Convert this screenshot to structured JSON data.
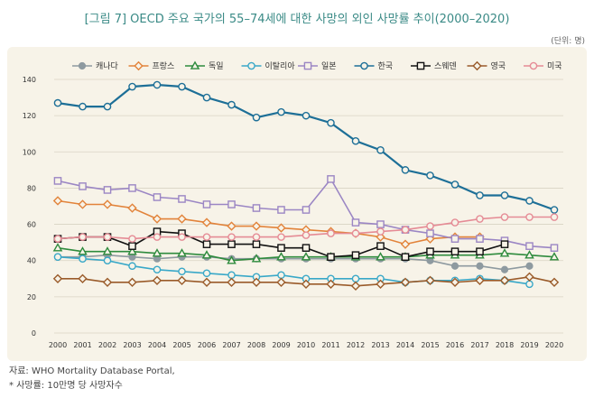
{
  "title": "[그림 7] OECD 주요 국가의 55–74세에 대한 사망의 외인 사망률 추이(2000–2020)",
  "unit_note": "(단위: 명)",
  "notes": [
    "자료: WHO Mortality Database Portal,",
    "* 사망률: 10만명 당 사망자수"
  ],
  "chart_data": {
    "type": "line",
    "title": "[그림 7] OECD 주요 국가의 55–74세에 대한 사망의 외인 사망률 추이(2000–2020)",
    "xlabel": "",
    "ylabel": "",
    "ylim": [
      0,
      140
    ],
    "yticks": [
      0,
      20,
      40,
      60,
      80,
      100,
      120,
      140
    ],
    "x": [
      2000,
      2001,
      2002,
      2003,
      2004,
      2005,
      2006,
      2007,
      2008,
      2009,
      2010,
      2011,
      2012,
      2013,
      2014,
      2015,
      2016,
      2017,
      2018,
      2019,
      2020
    ],
    "grid": true,
    "legend_position": "top",
    "series": [
      {
        "name": "캐나다",
        "color": "#8e9aa0",
        "marker": "circle",
        "values": [
          42,
          42,
          43,
          42,
          41,
          42,
          42,
          41,
          41,
          41,
          41,
          41,
          41,
          41,
          41,
          40,
          37,
          37,
          35,
          37,
          null
        ]
      },
      {
        "name": "프랑스",
        "color": "#e2833a",
        "marker": "diamond",
        "values": [
          73,
          71,
          71,
          69,
          63,
          63,
          61,
          59,
          59,
          58,
          57,
          56,
          55,
          53,
          49,
          52,
          53,
          53,
          null,
          null,
          null
        ]
      },
      {
        "name": "독일",
        "color": "#2e8b3d",
        "marker": "triangle",
        "values": [
          47,
          45,
          45,
          45,
          44,
          44,
          43,
          40,
          41,
          42,
          42,
          42,
          42,
          42,
          42,
          43,
          43,
          43,
          44,
          43,
          42
        ]
      },
      {
        "name": "이탈리아",
        "color": "#39a8c8",
        "marker": "circle-open",
        "values": [
          42,
          41,
          40,
          37,
          35,
          34,
          33,
          32,
          31,
          32,
          30,
          30,
          30,
          30,
          28,
          29,
          29,
          30,
          29,
          27,
          null
        ]
      },
      {
        "name": "일본",
        "color": "#9b86c4",
        "marker": "square-open",
        "values": [
          84,
          81,
          79,
          80,
          75,
          74,
          71,
          71,
          69,
          68,
          68,
          85,
          61,
          60,
          57,
          55,
          52,
          52,
          51,
          48,
          47
        ]
      },
      {
        "name": "한국",
        "color": "#1d6f97",
        "marker": "circle-open",
        "values": [
          127,
          125,
          125,
          136,
          137,
          136,
          130,
          126,
          119,
          122,
          120,
          116,
          106,
          101,
          90,
          87,
          82,
          76,
          76,
          73,
          68
        ]
      },
      {
        "name": "스웨덴",
        "color": "#111111",
        "marker": "square-open",
        "values": [
          52,
          53,
          53,
          48,
          56,
          55,
          49,
          49,
          49,
          47,
          47,
          42,
          43,
          48,
          42,
          45,
          45,
          45,
          49,
          null,
          null
        ]
      },
      {
        "name": "영국",
        "color": "#9a5b2a",
        "marker": "diamond",
        "values": [
          30,
          30,
          28,
          28,
          29,
          29,
          28,
          28,
          28,
          28,
          27,
          27,
          26,
          27,
          28,
          29,
          28,
          29,
          29,
          31,
          28
        ]
      },
      {
        "name": "미국",
        "color": "#e58b95",
        "marker": "circle-open",
        "values": [
          52,
          53,
          53,
          52,
          53,
          53,
          53,
          53,
          53,
          53,
          54,
          55,
          55,
          56,
          57,
          59,
          61,
          63,
          64,
          64,
          64
        ]
      }
    ]
  }
}
